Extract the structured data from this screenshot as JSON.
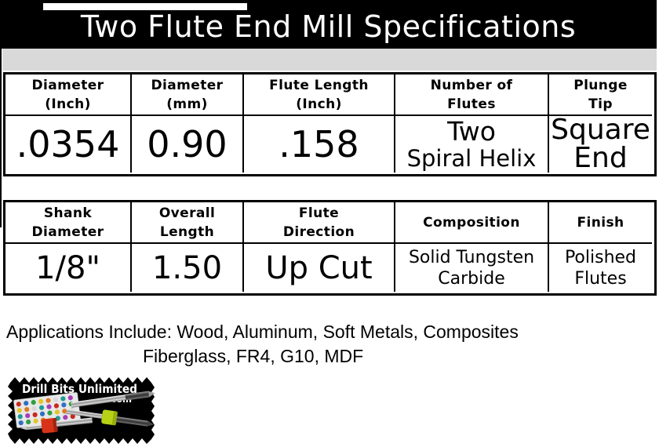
{
  "title": "Two Flute End Mill Specifications",
  "colors": {
    "header_bar": "#000000",
    "subheader_bar": "#d9d9d9",
    "ring_red": "#d83318",
    "ring_green": "#b7d117"
  },
  "spec_table_primary": {
    "columns": [
      {
        "header_line1": "Diameter",
        "header_line2": "(Inch)",
        "value_line1": ".0354",
        "value_line2": ""
      },
      {
        "header_line1": "Diameter",
        "header_line2": "(mm)",
        "value_line1": "0.90",
        "value_line2": ""
      },
      {
        "header_line1": "Flute Length",
        "header_line2": "(Inch)",
        "value_line1": ".158",
        "value_line2": ""
      },
      {
        "header_line1": "Number of",
        "header_line2": "Flutes",
        "value_line1": "Two",
        "value_line2": "Spiral Helix"
      },
      {
        "header_line1": "Plunge",
        "header_line2": "Tip",
        "value_line1": "Square",
        "value_line2": "End"
      }
    ]
  },
  "spec_table_secondary": {
    "columns": [
      {
        "header_line1": "Shank",
        "header_line2": "Diameter",
        "value_line1": "1/8\"",
        "value_line2": ""
      },
      {
        "header_line1": "Overall",
        "header_line2": "Length",
        "value_line1": "1.50",
        "value_line2": ""
      },
      {
        "header_line1": "Flute",
        "header_line2": "Direction",
        "value_line1": "Up Cut",
        "value_line2": ""
      },
      {
        "header_line1": "Composition",
        "header_line2": "",
        "value_line1": "Solid Tungsten",
        "value_line2": "Carbide"
      },
      {
        "header_line1": "Finish",
        "header_line2": "",
        "value_line1": "Polished",
        "value_line2": "Flutes"
      }
    ]
  },
  "applications": {
    "line1": "Applications Include: Wood, Aluminum, Soft Metals, Composites",
    "line2": "Fiberglass, FR4, G10, MDF"
  },
  "logo": {
    "brand": "Drill Bits Unlimited",
    "domain": ".com"
  }
}
